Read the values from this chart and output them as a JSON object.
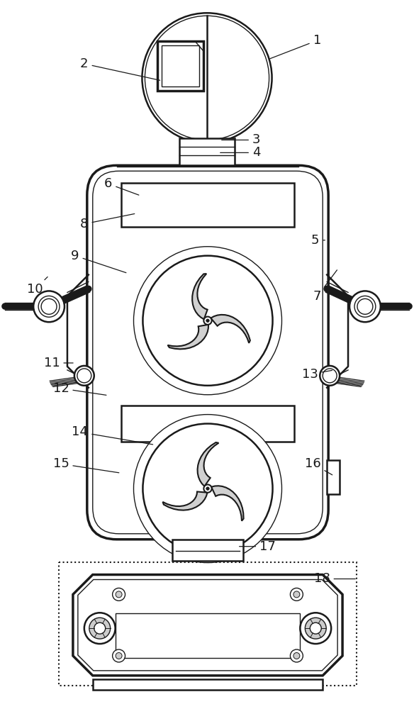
{
  "bg_color": "#ffffff",
  "line_color": "#1a1a1a",
  "label_color": "#1a1a1a",
  "figsize": [
    5.84,
    10.0
  ],
  "dpi": 100,
  "labels_data": [
    [
      1,
      448,
      55,
      378,
      82
    ],
    [
      2,
      118,
      88,
      228,
      112
    ],
    [
      3,
      362,
      196,
      310,
      196
    ],
    [
      4,
      362,
      214,
      308,
      214
    ],
    [
      5,
      445,
      338,
      462,
      338
    ],
    [
      6,
      152,
      258,
      198,
      275
    ],
    [
      7,
      448,
      418,
      478,
      378
    ],
    [
      8,
      118,
      315,
      192,
      300
    ],
    [
      9,
      105,
      360,
      180,
      385
    ],
    [
      10,
      48,
      408,
      68,
      388
    ],
    [
      11,
      72,
      512,
      105,
      512
    ],
    [
      12,
      85,
      548,
      152,
      558
    ],
    [
      13,
      438,
      528,
      472,
      522
    ],
    [
      14,
      112,
      610,
      218,
      628
    ],
    [
      15,
      85,
      655,
      170,
      668
    ],
    [
      16,
      442,
      655,
      472,
      672
    ],
    [
      17,
      378,
      772,
      335,
      772
    ],
    [
      18,
      455,
      818,
      505,
      818
    ]
  ]
}
